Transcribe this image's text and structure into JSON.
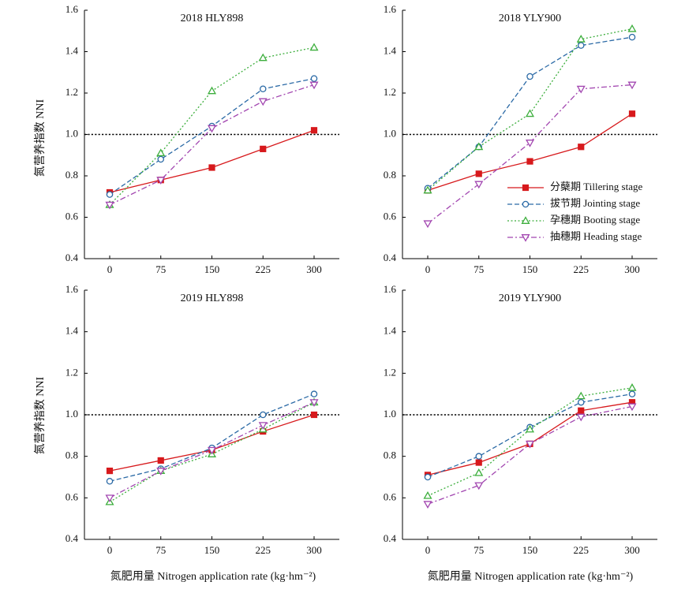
{
  "ylabel": "氮营养指数 NNI",
  "xlabel": "氮肥用量 Nitrogen application rate (kg·hm⁻²)",
  "legend": [
    {
      "name": "分蘖期  Tillering stage",
      "color": "#d7191c",
      "dash": "solid",
      "marker": "square-filled"
    },
    {
      "name": "拔节期  Jointing stage",
      "color": "#2b6aa6",
      "dash": "dashed",
      "marker": "circle-open"
    },
    {
      "name": "孕穗期  Booting stage",
      "color": "#3cae3c",
      "dash": "dotted",
      "marker": "triangle-up-open"
    },
    {
      "name": "抽穗期  Heading stage",
      "color": "#a246b0",
      "dash": "dashdot",
      "marker": "triangle-down-open"
    }
  ],
  "chart_data": [
    {
      "type": "line",
      "title": "2018 HLY898",
      "categories": [
        "0",
        "75",
        "150",
        "225",
        "300"
      ],
      "ylim": [
        0.4,
        1.6
      ],
      "yticks": [
        "0.4",
        "0.6",
        "0.8",
        "1.0",
        "1.2",
        "1.4",
        "1.6"
      ],
      "reference_line": 1.0,
      "series": [
        {
          "name": "分蘖期  Tillering stage",
          "values": [
            0.72,
            0.78,
            0.84,
            0.93,
            1.02
          ]
        },
        {
          "name": "拔节期  Jointing stage",
          "values": [
            0.71,
            0.88,
            1.04,
            1.22,
            1.27
          ]
        },
        {
          "name": "孕穗期  Booting stage",
          "values": [
            0.66,
            0.91,
            1.21,
            1.37,
            1.42
          ]
        },
        {
          "name": "抽穗期  Heading stage",
          "values": [
            0.66,
            0.78,
            1.03,
            1.16,
            1.24
          ]
        }
      ]
    },
    {
      "type": "line",
      "title": "2018 YLY900",
      "categories": [
        "0",
        "75",
        "150",
        "225",
        "300"
      ],
      "ylim": [
        0.4,
        1.6
      ],
      "yticks": [
        "0.4",
        "0.6",
        "0.8",
        "1.0",
        "1.2",
        "1.4",
        "1.6"
      ],
      "reference_line": 1.0,
      "legend_position": "right",
      "series": [
        {
          "name": "分蘖期  Tillering stage",
          "values": [
            0.73,
            0.81,
            0.87,
            0.94,
            1.1
          ]
        },
        {
          "name": "拔节期  Jointing stage",
          "values": [
            0.74,
            0.94,
            1.28,
            1.43,
            1.47
          ]
        },
        {
          "name": "孕穗期  Booting stage",
          "values": [
            0.73,
            0.94,
            1.1,
            1.46,
            1.51
          ]
        },
        {
          "name": "抽穗期  Heading stage",
          "values": [
            0.57,
            0.76,
            0.96,
            1.22,
            1.24
          ]
        }
      ]
    },
    {
      "type": "line",
      "title": "2019 HLY898",
      "categories": [
        "0",
        "75",
        "150",
        "225",
        "300"
      ],
      "ylim": [
        0.4,
        1.6
      ],
      "yticks": [
        "0.4",
        "0.6",
        "0.8",
        "1.0",
        "1.2",
        "1.4",
        "1.6"
      ],
      "reference_line": 1.0,
      "series": [
        {
          "name": "分蘖期  Tillering stage",
          "values": [
            0.73,
            0.78,
            0.83,
            0.92,
            1.0
          ]
        },
        {
          "name": "拔节期  Jointing stage",
          "values": [
            0.68,
            0.74,
            0.84,
            1.0,
            1.1
          ]
        },
        {
          "name": "孕穗期  Booting stage",
          "values": [
            0.58,
            0.73,
            0.81,
            0.93,
            1.06
          ]
        },
        {
          "name": "抽穗期  Heading stage",
          "values": [
            0.6,
            0.73,
            0.83,
            0.95,
            1.06
          ]
        }
      ]
    },
    {
      "type": "line",
      "title": "2019 YLY900",
      "categories": [
        "0",
        "75",
        "150",
        "225",
        "300"
      ],
      "ylim": [
        0.4,
        1.6
      ],
      "yticks": [
        "0.4",
        "0.6",
        "0.8",
        "1.0",
        "1.2",
        "1.4",
        "1.6"
      ],
      "reference_line": 1.0,
      "series": [
        {
          "name": "分蘖期  Tillering stage",
          "values": [
            0.71,
            0.77,
            0.86,
            1.02,
            1.06
          ]
        },
        {
          "name": "拔节期  Jointing stage",
          "values": [
            0.7,
            0.8,
            0.94,
            1.06,
            1.1
          ]
        },
        {
          "name": "孕穗期  Booting stage",
          "values": [
            0.61,
            0.72,
            0.93,
            1.09,
            1.13
          ]
        },
        {
          "name": "抽穗期  Heading stage",
          "values": [
            0.57,
            0.66,
            0.86,
            0.99,
            1.04
          ]
        }
      ]
    }
  ]
}
